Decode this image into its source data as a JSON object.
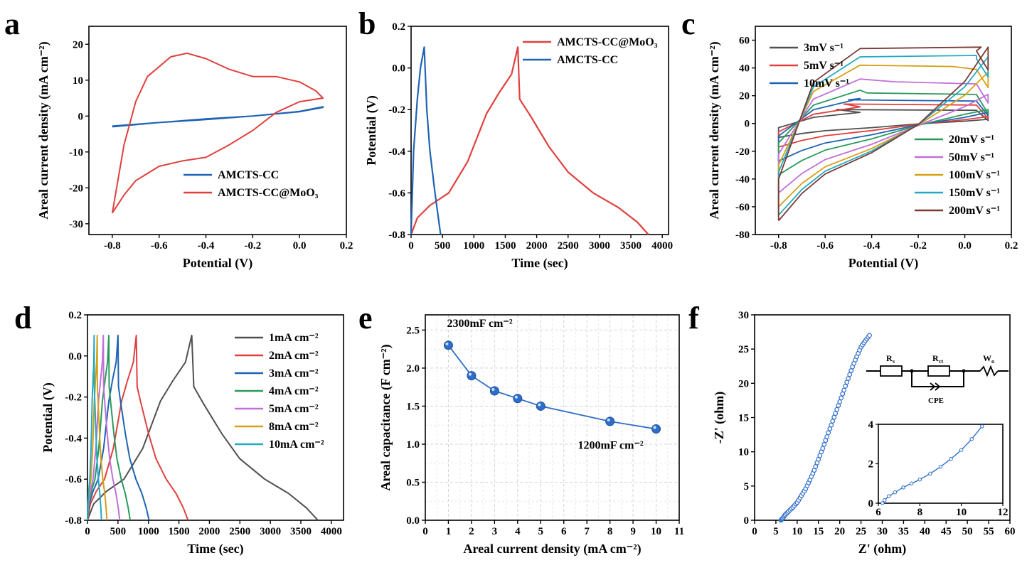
{
  "colors": {
    "red": "#e0403d",
    "blue": "#1f63b4",
    "gray": "#505050",
    "green": "#2a9a5c",
    "purple": "#c070d8",
    "orange": "#d7a013",
    "cyan": "#23a9c4",
    "brown": "#7a3a33",
    "marker": "#2e6ec9",
    "grid": "#d4d4d4"
  },
  "panels": {
    "a": "a",
    "b": "b",
    "c": "c",
    "d": "d",
    "e": "e",
    "f": "f"
  },
  "chart_data": [
    {
      "id": "a",
      "type": "line",
      "title": "",
      "xlabel": "Potential (V)",
      "ylabel": "Areal current density (mA cm⁻²)",
      "xlim": [
        -0.9,
        0.2
      ],
      "ylim": [
        -33,
        25
      ],
      "xticks": [
        -0.8,
        -0.6,
        -0.4,
        -0.2,
        0.0,
        0.2
      ],
      "xticklabels": [
        "-0.8",
        "-0.6",
        "-0.4",
        "-0.2",
        "0.0",
        "0.2"
      ],
      "yticks": [
        -30,
        -20,
        -10,
        0,
        10,
        20
      ],
      "yticklabels": [
        "-30",
        "-20",
        "-10",
        "0",
        "10",
        "20"
      ],
      "legend": "lower-right",
      "series": [
        {
          "name": "AMCTS-CC",
          "color": "blue",
          "points": [
            [
              -0.8,
              -3
            ],
            [
              -0.6,
              -1.8
            ],
            [
              -0.4,
              -1
            ],
            [
              -0.2,
              0
            ],
            [
              0.0,
              1.3
            ],
            [
              0.1,
              2.6
            ],
            [
              0.1,
              2.4
            ],
            [
              0.0,
              1.2
            ],
            [
              -0.2,
              0
            ],
            [
              -0.4,
              -0.8
            ],
            [
              -0.6,
              -1.8
            ],
            [
              -0.8,
              -2.8
            ]
          ]
        },
        {
          "name": "AMCTS-CC@MoO₃",
          "color": "red",
          "points": [
            [
              -0.8,
              -27
            ],
            [
              -0.75,
              -22
            ],
            [
              -0.7,
              -18
            ],
            [
              -0.6,
              -14
            ],
            [
              -0.5,
              -12.5
            ],
            [
              -0.4,
              -11.5
            ],
            [
              -0.3,
              -8
            ],
            [
              -0.2,
              -4
            ],
            [
              -0.1,
              1
            ],
            [
              0.0,
              4
            ],
            [
              0.1,
              5
            ],
            [
              0.07,
              7
            ],
            [
              0.0,
              9.5
            ],
            [
              -0.1,
              11
            ],
            [
              -0.2,
              11
            ],
            [
              -0.3,
              13
            ],
            [
              -0.4,
              16
            ],
            [
              -0.48,
              17.5
            ],
            [
              -0.55,
              16.5
            ],
            [
              -0.65,
              11
            ],
            [
              -0.7,
              4
            ],
            [
              -0.75,
              -8
            ],
            [
              -0.8,
              -27
            ]
          ]
        }
      ]
    },
    {
      "id": "b",
      "type": "line",
      "title": "",
      "xlabel": "Time (sec)",
      "ylabel": "Potential (V)",
      "xlim": [
        0,
        4100
      ],
      "ylim": [
        -0.8,
        0.2
      ],
      "xticks": [
        0,
        500,
        1000,
        1500,
        2000,
        2500,
        3000,
        3500,
        4000
      ],
      "xticklabels": [
        "0",
        "500",
        "1000",
        "1500",
        "2000",
        "2500",
        "3000",
        "3500",
        "4000"
      ],
      "yticks": [
        -0.8,
        -0.6,
        -0.4,
        -0.2,
        0.0,
        0.2
      ],
      "yticklabels": [
        "-0.8",
        "-0.6",
        "-0.4",
        "-0.2",
        "0.0",
        "0.2"
      ],
      "legend": "top-right",
      "series": [
        {
          "name": "AMCTS-CC@MoO₃",
          "color": "red",
          "points": [
            [
              0,
              -0.8
            ],
            [
              100,
              -0.72
            ],
            [
              300,
              -0.66
            ],
            [
              600,
              -0.6
            ],
            [
              900,
              -0.45
            ],
            [
              1200,
              -0.22
            ],
            [
              1400,
              -0.12
            ],
            [
              1600,
              -0.03
            ],
            [
              1700,
              0.1
            ],
            [
              1730,
              -0.15
            ],
            [
              1900,
              -0.23
            ],
            [
              2200,
              -0.38
            ],
            [
              2500,
              -0.5
            ],
            [
              2900,
              -0.6
            ],
            [
              3300,
              -0.67
            ],
            [
              3600,
              -0.74
            ],
            [
              3780,
              -0.8
            ]
          ]
        },
        {
          "name": "AMCTS-CC",
          "color": "blue",
          "points": [
            [
              0,
              -0.8
            ],
            [
              40,
              -0.4
            ],
            [
              100,
              -0.15
            ],
            [
              150,
              0
            ],
            [
              210,
              0.1
            ],
            [
              250,
              -0.2
            ],
            [
              300,
              -0.4
            ],
            [
              380,
              -0.6
            ],
            [
              470,
              -0.8
            ]
          ]
        }
      ]
    },
    {
      "id": "c",
      "type": "line",
      "title": "",
      "xlabel": "Potential (V)",
      "ylabel": "Areal current density (mA cm⁻²)",
      "xlim": [
        -0.9,
        0.2
      ],
      "ylim": [
        -80,
        70
      ],
      "xticks": [
        -0.8,
        -0.6,
        -0.4,
        -0.2,
        0.0,
        0.2
      ],
      "xticklabels": [
        "-0.8",
        "-0.6",
        "-0.4",
        "-0.2",
        "0.0",
        "0.2"
      ],
      "yticks": [
        -80,
        -60,
        -40,
        -20,
        0,
        20,
        40,
        60
      ],
      "yticklabels": [
        "-80",
        "-60",
        "-40",
        "-20",
        "0",
        "20",
        "40",
        "60"
      ],
      "legend": "split top-left / bottom-right",
      "series": [
        {
          "name": "3mV s⁻¹",
          "color": "gray",
          "loop": {
            "low": -10,
            "up": 3,
            "mid": [
              -3,
              8
            ],
            "peak": [
              -0.55,
              10
            ],
            "top": 3
          }
        },
        {
          "name": "5mV s⁻¹",
          "color": "red",
          "loop": {
            "low": -17,
            "up": 5,
            "mid": [
              -6,
              12
            ],
            "peak": [
              -0.52,
              14
            ],
            "top": 5
          }
        },
        {
          "name": "10mV s⁻¹",
          "color": "blue",
          "loop": {
            "low": -27,
            "up": 8,
            "mid": [
              -9,
              18
            ],
            "peak": [
              -0.5,
              17
            ],
            "top": 8
          }
        },
        {
          "name": "20mV s⁻¹",
          "color": "green",
          "loop": {
            "low": -37,
            "up": 12,
            "mid": [
              -14,
              24
            ],
            "peak": [
              -0.42,
              22
            ],
            "top": 10
          }
        },
        {
          "name": "50mV s⁻¹",
          "color": "purple",
          "loop": {
            "low": -50,
            "up": 22,
            "mid": [
              -22,
              32
            ],
            "peak": [
              -0.3,
              30
            ],
            "top": 21
          }
        },
        {
          "name": "100mV s⁻¹",
          "color": "orange",
          "loop": {
            "low": -60,
            "up": 37,
            "mid": [
              -30,
              42
            ],
            "peak": [
              -0.05,
              41
            ],
            "top": 37
          }
        },
        {
          "name": "150mV s⁻¹",
          "color": "cyan",
          "loop": {
            "low": -66,
            "up": 48,
            "mid": [
              -35,
              48
            ],
            "peak": [
              0.05,
              49
            ],
            "top": 48
          }
        },
        {
          "name": "200mV s⁻¹",
          "color": "brown",
          "loop": {
            "low": -70,
            "up": 55,
            "mid": [
              -40,
              54
            ],
            "peak": [
              0.07,
              55
            ],
            "top": 55
          }
        }
      ]
    },
    {
      "id": "d",
      "type": "line",
      "title": "",
      "xlabel": "Time (sec)",
      "ylabel": "Potential (V)",
      "xlim": [
        0,
        4200
      ],
      "ylim": [
        -0.8,
        0.2
      ],
      "xticks": [
        0,
        500,
        1000,
        1500,
        2000,
        2500,
        3000,
        3500,
        4000
      ],
      "xticklabels": [
        "0",
        "500",
        "1000",
        "1500",
        "2000",
        "2500",
        "3000",
        "3500",
        "4000"
      ],
      "yticks": [
        -0.8,
        -0.6,
        -0.4,
        -0.2,
        0.0,
        0.2
      ],
      "yticklabels": [
        "-0.8",
        "-0.6",
        "-0.4",
        "-0.2",
        "0.0",
        "0.2"
      ],
      "legend": "top-right",
      "series": [
        {
          "name": "1mA cm⁻²",
          "color": "gray",
          "peak": 1710,
          "end": 3780
        },
        {
          "name": "2mA cm⁻²",
          "color": "red",
          "peak": 800,
          "end": 1650
        },
        {
          "name": "3mA cm⁻²",
          "color": "blue",
          "peak": 500,
          "end": 1010
        },
        {
          "name": "4mA cm⁻²",
          "color": "green",
          "peak": 350,
          "end": 700
        },
        {
          "name": "5mA cm⁻²",
          "color": "purple",
          "peak": 260,
          "end": 530
        },
        {
          "name": "8mA cm⁻²",
          "color": "orange",
          "peak": 160,
          "end": 320
        },
        {
          "name": "10mA cm⁻²",
          "color": "cyan",
          "peak": 110,
          "end": 230
        }
      ]
    },
    {
      "id": "e",
      "type": "scatter",
      "title": "",
      "xlabel": "Areal current density (mA cm⁻²)",
      "ylabel": "Areal capacitance (F cm⁻²)",
      "xlim": [
        0,
        11
      ],
      "ylim": [
        0,
        2.7
      ],
      "xticks": [
        0,
        1,
        2,
        3,
        4,
        5,
        6,
        7,
        8,
        9,
        10,
        11
      ],
      "xticklabels": [
        "0",
        "1",
        "2",
        "3",
        "4",
        "5",
        "6",
        "7",
        "8",
        "9",
        "10",
        "11"
      ],
      "yticks": [
        0.0,
        0.5,
        1.0,
        1.5,
        2.0,
        2.5
      ],
      "yticklabels": [
        "0.0",
        "0.5",
        "1.0",
        "1.5",
        "2.0",
        "2.5"
      ],
      "grid": true,
      "series": [
        {
          "name": "capacitance",
          "color": "marker",
          "points": [
            [
              1,
              2.3
            ],
            [
              2,
              1.9
            ],
            [
              3,
              1.7
            ],
            [
              4,
              1.6
            ],
            [
              5,
              1.5
            ],
            [
              8,
              1.3
            ],
            [
              10,
              1.2
            ]
          ]
        }
      ],
      "annotations": [
        {
          "text": "2300mF cm⁻²",
          "at": [
            1,
            2.3
          ]
        },
        {
          "text": "1200mF cm⁻²",
          "at": [
            10,
            1.2
          ]
        }
      ]
    },
    {
      "id": "f",
      "type": "scatter",
      "title": "",
      "xlabel": "Z' (ohm)",
      "ylabel": "-Z' (ohm)",
      "xlim": [
        0,
        60
      ],
      "ylim": [
        0,
        30
      ],
      "xticks": [
        0,
        5,
        10,
        15,
        20,
        25,
        30,
        35,
        40,
        45,
        50,
        55,
        60
      ],
      "xticklabels": [
        "0",
        "5",
        "10",
        "15",
        "20",
        "25",
        "30",
        "35",
        "40",
        "45",
        "50",
        "55",
        "60"
      ],
      "yticks": [
        0,
        5,
        10,
        15,
        20,
        25,
        30
      ],
      "yticklabels": [
        "0",
        "5",
        "10",
        "15",
        "20",
        "25",
        "30"
      ],
      "series": [
        {
          "name": "nyquist",
          "color": "marker",
          "points": [
            [
              6.2,
              0
            ],
            [
              6.6,
              0.3
            ],
            [
              7.2,
              0.8
            ],
            [
              8,
              1.3
            ],
            [
              9,
              1.9
            ],
            [
              10,
              2.6
            ],
            [
              11,
              3.6
            ],
            [
              12,
              4.6
            ],
            [
              13,
              5.9
            ],
            [
              14,
              7.3
            ],
            [
              15,
              8.9
            ],
            [
              16,
              10.5
            ],
            [
              17,
              12.2
            ],
            [
              18,
              13.9
            ],
            [
              19,
              15.6
            ],
            [
              20,
              17.3
            ],
            [
              21,
              19
            ],
            [
              22,
              20.7
            ],
            [
              23,
              22.4
            ],
            [
              24,
              23.9
            ],
            [
              25,
              25.3
            ],
            [
              26,
              26.2
            ],
            [
              27,
              27
            ]
          ]
        }
      ],
      "inset": {
        "xlim": [
          6,
          12
        ],
        "ylim": [
          0,
          4
        ],
        "xticks": [
          6,
          8,
          10,
          12
        ],
        "xticklabels": [
          "6",
          "8",
          "10",
          "12"
        ],
        "yticks": [
          0,
          2,
          4
        ],
        "yticklabels": [
          "0",
          "2",
          "4"
        ],
        "points": [
          [
            6.2,
            0
          ],
          [
            6.3,
            0.15
          ],
          [
            6.5,
            0.35
          ],
          [
            6.8,
            0.55
          ],
          [
            7.2,
            0.8
          ],
          [
            7.6,
            1
          ],
          [
            8,
            1.2
          ],
          [
            8.5,
            1.5
          ],
          [
            9,
            1.85
          ],
          [
            9.5,
            2.25
          ],
          [
            10,
            2.7
          ],
          [
            10.5,
            3.25
          ],
          [
            11,
            3.9
          ]
        ]
      },
      "circuit": {
        "rs": "R",
        "rs_sub": "s",
        "rct": "R",
        "rct_sub": "ct",
        "wo": "W",
        "wo_sub": "o",
        "cpe": "CPE"
      }
    }
  ]
}
